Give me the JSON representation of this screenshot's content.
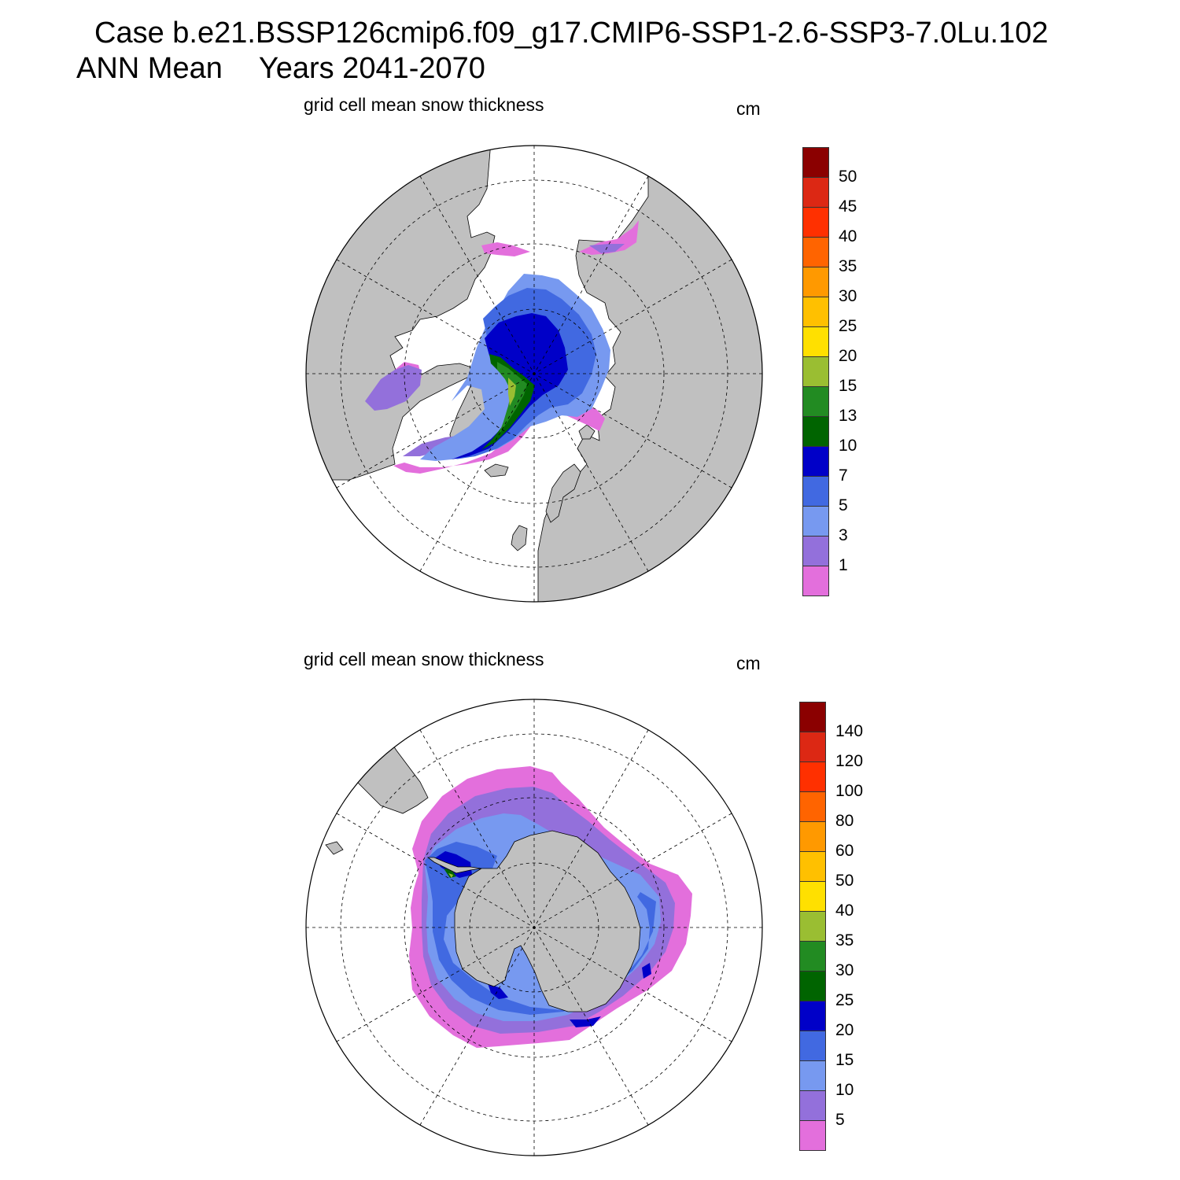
{
  "header": {
    "case_line": "Case b.e21.BSSP126cmip6.f09_g17.CMIP6-SSP1-2.6-SSP3-7.0Lu.102",
    "season": "ANN Mean",
    "years": "Years 2041-2070"
  },
  "panels": [
    {
      "title": "grid cell mean snow thickness",
      "units": "cm",
      "hemisphere": "north",
      "colorbar_labels": [
        "1",
        "3",
        "5",
        "7",
        "10",
        "13",
        "15",
        "20",
        "25",
        "30",
        "35",
        "40",
        "45",
        "50"
      ]
    },
    {
      "title": "grid cell mean snow thickness",
      "units": "cm",
      "hemisphere": "south",
      "colorbar_labels": [
        "5",
        "10",
        "15",
        "20",
        "25",
        "30",
        "35",
        "40",
        "50",
        "60",
        "80",
        "100",
        "120",
        "140"
      ]
    }
  ],
  "colors": {
    "palette": [
      "#e36fdc",
      "#9370db",
      "#7799f0",
      "#4169e1",
      "#0000c8",
      "#006400",
      "#228b22",
      "#9abe32",
      "#ffe000",
      "#ffc000",
      "#ff9900",
      "#ff6400",
      "#ff3000",
      "#dc2814",
      "#8b0000"
    ],
    "land": "#c0c0c0",
    "ocean": "#ffffff"
  }
}
